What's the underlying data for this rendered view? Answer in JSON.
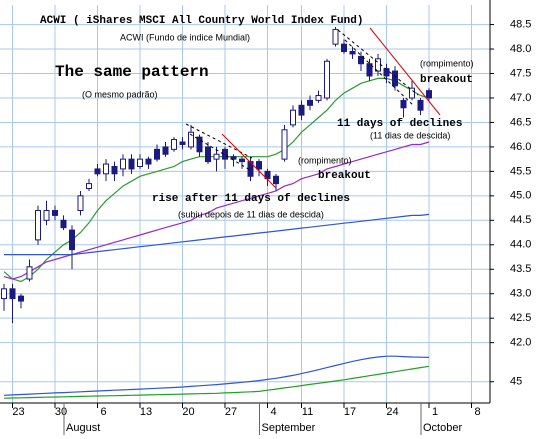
{
  "chart_data": [
    {
      "type": "candlestick",
      "title": "ACWI ( iShares MSCI All Country World Index Fund)",
      "subtitle": "ACWI (Fundo de indice Mundial)",
      "annotations": [
        "The same pattern",
        "(O mesmo padrão)",
        "(rompimento)",
        "breakout",
        "11 days of declines",
        "(11 dias de descida)",
        "(rompimento)",
        "breakout",
        "rise after 11 days of declines",
        "(subiu depois de 11 dias de descida)"
      ],
      "categories": [
        null,
        "23",
        null,
        null,
        null,
        null,
        "30",
        null,
        null,
        null,
        null,
        "6",
        null,
        null,
        null,
        null,
        "13",
        null,
        null,
        null,
        null,
        "20",
        null,
        null,
        null,
        null,
        "27",
        null,
        null,
        null,
        null,
        "4",
        null,
        null,
        null,
        "11",
        null,
        null,
        null,
        null,
        "17",
        null,
        null,
        null,
        null,
        "24",
        null,
        null,
        null,
        null,
        "1",
        null,
        null,
        null,
        null,
        "8",
        null,
        null
      ],
      "months": [
        {
          "label": "August",
          "category": 8
        },
        {
          "label": "September",
          "category": 31
        },
        {
          "label": "October",
          "category": 50
        }
      ],
      "open": [
        42.9,
        43.1,
        42.95,
        43.3,
        44.1,
        44.5,
        44.7,
        44.5,
        44.3,
        44.7,
        45.15,
        45.55,
        45.45,
        45.6,
        45.55,
        45.75,
        45.6,
        45.75,
        45.95,
        46.0,
        45.95,
        46.1,
        46.0,
        46.2,
        46.0,
        45.75,
        45.95,
        45.8,
        45.75,
        45.7,
        45.7,
        45.5,
        45.4,
        45.75,
        46.45,
        46.85,
        46.95,
        46.95,
        47.0,
        48.1,
        48.1,
        47.95,
        47.85,
        47.7,
        47.55,
        47.6,
        47.55,
        46.95,
        47.0,
        46.95,
        47.15,
        null,
        null,
        null,
        null,
        null,
        null,
        null
      ],
      "high": [
        43.2,
        43.2,
        43.0,
        43.7,
        44.8,
        44.9,
        44.8,
        44.6,
        44.4,
        45.1,
        45.35,
        45.65,
        45.75,
        45.7,
        45.85,
        45.85,
        45.85,
        45.8,
        46.05,
        46.1,
        46.2,
        46.2,
        46.45,
        46.25,
        46.1,
        46.0,
        46.0,
        45.85,
        45.8,
        45.8,
        45.75,
        45.55,
        45.45,
        46.45,
        46.85,
        46.95,
        47.05,
        47.15,
        47.8,
        48.45,
        48.2,
        48.05,
        47.95,
        47.8,
        47.9,
        47.7,
        47.65,
        47.0,
        47.35,
        47.0,
        47.2,
        null,
        null,
        null,
        null,
        null,
        null,
        null
      ],
      "low": [
        42.65,
        42.4,
        42.7,
        43.25,
        44.0,
        44.4,
        44.5,
        44.3,
        43.5,
        44.6,
        45.1,
        45.4,
        45.3,
        45.3,
        45.4,
        45.45,
        45.55,
        45.55,
        45.7,
        45.8,
        45.9,
        45.95,
        45.95,
        45.8,
        45.65,
        45.5,
        45.55,
        45.6,
        45.55,
        45.3,
        45.4,
        45.2,
        45.1,
        45.7,
        46.4,
        46.55,
        46.75,
        46.9,
        46.95,
        48.05,
        47.9,
        47.8,
        47.55,
        47.35,
        47.45,
        47.3,
        47.15,
        46.6,
        46.95,
        46.65,
        46.95,
        null,
        null,
        null,
        null,
        null,
        null,
        null
      ],
      "close": [
        43.1,
        42.9,
        42.85,
        43.55,
        44.7,
        44.7,
        44.6,
        44.35,
        43.9,
        45.0,
        45.25,
        45.45,
        45.65,
        45.45,
        45.75,
        45.55,
        45.75,
        45.65,
        45.75,
        45.85,
        46.15,
        46.05,
        46.3,
        45.9,
        45.7,
        45.85,
        45.75,
        45.75,
        45.7,
        45.4,
        45.55,
        45.35,
        45.25,
        46.35,
        46.75,
        46.65,
        46.85,
        47.05,
        47.75,
        48.4,
        47.95,
        47.9,
        47.7,
        47.45,
        47.8,
        47.45,
        47.25,
        46.8,
        47.2,
        46.75,
        47.0,
        null,
        null,
        null,
        null,
        null,
        null,
        null
      ],
      "color": "#1a1a80",
      "series": [
        {
          "color": "#2e9a2e",
          "values": [
            43.45,
            43.3,
            43.25,
            43.35,
            43.5,
            43.7,
            43.85,
            44.0,
            44.1,
            44.25,
            44.45,
            44.7,
            44.9,
            45.05,
            45.2,
            45.3,
            45.4,
            45.45,
            45.5,
            45.55,
            45.6,
            45.7,
            45.75,
            45.8,
            45.8,
            45.8,
            45.8,
            45.8,
            45.8,
            45.8,
            45.8,
            45.8,
            45.85,
            45.95,
            46.1,
            46.3,
            46.45,
            46.6,
            46.75,
            46.95,
            47.1,
            47.2,
            47.3,
            47.35,
            47.4,
            47.4,
            47.35,
            47.25,
            47.15,
            47.05,
            47.0,
            null,
            null,
            null,
            null,
            null,
            null,
            null
          ]
        },
        {
          "color": "#9a28c8",
          "values": [
            43.35,
            43.3,
            43.35,
            43.45,
            43.55,
            43.65,
            43.7,
            43.75,
            43.8,
            43.85,
            43.9,
            43.95,
            44.0,
            44.05,
            44.1,
            44.15,
            44.2,
            44.25,
            44.3,
            44.35,
            44.4,
            44.45,
            44.5,
            44.6,
            44.65,
            44.75,
            44.8,
            44.85,
            44.9,
            44.95,
            45.0,
            45.05,
            45.1,
            45.2,
            45.25,
            45.35,
            45.4,
            45.45,
            45.55,
            45.6,
            45.65,
            45.7,
            45.75,
            45.8,
            45.85,
            45.9,
            45.95,
            46.0,
            46.05,
            46.05,
            46.1,
            null,
            null,
            null,
            null,
            null,
            null,
            null
          ]
        },
        {
          "color": "#2f55d4",
          "values": [
            43.8,
            43.8,
            43.8,
            43.8,
            43.8,
            43.8,
            43.8,
            43.8,
            43.8,
            43.82,
            43.84,
            43.86,
            43.88,
            43.9,
            43.92,
            43.94,
            43.96,
            43.98,
            44.0,
            44.02,
            44.04,
            44.06,
            44.08,
            44.1,
            44.12,
            44.14,
            44.16,
            44.18,
            44.2,
            44.22,
            44.24,
            44.26,
            44.28,
            44.3,
            44.32,
            44.34,
            44.36,
            44.38,
            44.4,
            44.42,
            44.44,
            44.46,
            44.48,
            44.5,
            44.52,
            44.54,
            44.56,
            44.58,
            44.6,
            44.6,
            44.62,
            null,
            null,
            null,
            null,
            null,
            null,
            null
          ]
        }
      ],
      "ylim": [
        41.4,
        48.9
      ],
      "yticks": [
        {
          "value": 42,
          "label": "42.0"
        },
        42.5,
        {
          "value": 43,
          "label": "43.0"
        },
        43.5,
        {
          "value": 44,
          "label": "44.0"
        },
        44.5,
        {
          "value": 45,
          "label": "45.0"
        },
        45.5,
        {
          "value": 46,
          "label": "46.0"
        },
        46.5,
        {
          "value": 47,
          "label": "47.0"
        },
        47.5,
        {
          "value": 48,
          "label": "48.0"
        },
        48.5
      ],
      "grid": true
    },
    {
      "type": "line",
      "series": [
        {
          "color": "#2f55d4",
          "values": [
            38.0,
            38.2,
            38.4,
            38.6,
            38.8,
            39.0,
            39.2,
            39.4,
            39.6,
            39.8,
            40.0,
            40.2,
            40.4,
            40.6,
            40.8,
            41.0,
            41.2,
            41.4,
            41.6,
            41.8,
            42.0,
            42.3,
            42.6,
            42.9,
            43.2,
            43.5,
            43.9,
            44.3,
            44.7,
            45.1,
            45.6,
            46.2,
            46.8,
            47.5,
            48.3,
            49.2,
            50.2,
            51.2,
            52.3,
            53.4,
            54.5,
            55.5,
            56.4,
            57.2,
            57.8,
            58.2,
            58.2,
            58.0,
            57.8,
            57.7,
            57.6,
            null,
            null,
            null,
            null,
            null,
            null,
            null
          ]
        },
        {
          "color": "#22a022",
          "values": [
            36.5,
            36.6,
            36.7,
            36.8,
            36.9,
            37.0,
            37.1,
            37.2,
            37.3,
            37.4,
            37.5,
            37.6,
            37.7,
            37.8,
            37.9,
            38.0,
            38.1,
            38.2,
            38.3,
            38.4,
            38.5,
            38.6,
            38.7,
            38.8,
            38.9,
            39.0,
            39.2,
            39.4,
            39.6,
            39.8,
            40.0,
            40.6,
            41.2,
            41.8,
            42.4,
            43.0,
            43.6,
            44.2,
            44.8,
            45.4,
            46.0,
            46.7,
            47.4,
            48.1,
            48.8,
            49.5,
            50.2,
            50.9,
            51.6,
            52.3,
            53.0,
            null,
            null,
            null,
            null,
            null,
            null,
            null
          ]
        }
      ],
      "ylim": [
        34,
        64
      ],
      "yticks": [
        45
      ],
      "grid": true
    }
  ]
}
